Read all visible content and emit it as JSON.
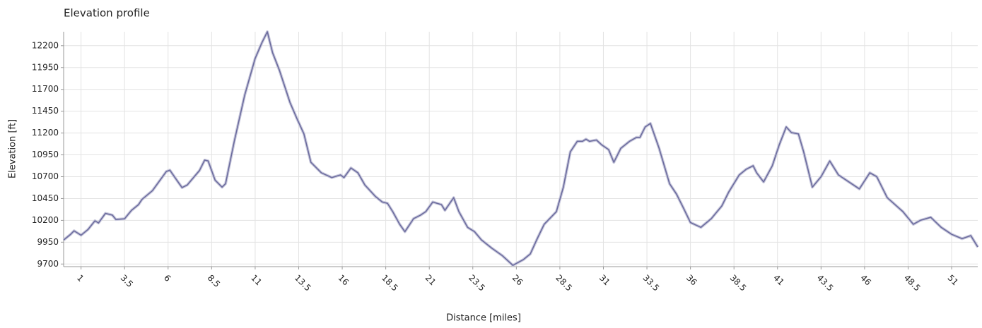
{
  "chart_data": {
    "type": "line",
    "title": "Elevation profile",
    "x_label": "Distance [miles]",
    "y_label": "Elevation [ft]",
    "xlim": [
      0,
      52.5
    ],
    "ylim": [
      9670,
      12360
    ],
    "xticks": [
      1,
      3.5,
      6,
      8.5,
      11,
      13.5,
      16,
      18.5,
      21,
      23.5,
      26,
      28.5,
      31,
      33.5,
      36,
      38.5,
      41,
      43.5,
      46,
      48.5,
      51
    ],
    "yticks": [
      9700,
      9950,
      10200,
      10450,
      10700,
      10950,
      11200,
      11450,
      11700,
      11950,
      12200
    ],
    "grid": true,
    "series": [
      {
        "name": "Elevation",
        "color": "#6c6c9e",
        "x": [
          0,
          0.4,
          0.6,
          1.0,
          1.4,
          1.8,
          2.0,
          2.4,
          2.8,
          3.0,
          3.5,
          3.9,
          4.3,
          4.5,
          5.1,
          5.5,
          5.9,
          6.1,
          6.5,
          6.8,
          7.1,
          7.5,
          7.8,
          8.1,
          8.3,
          8.7,
          9.1,
          9.3,
          9.8,
          10.4,
          11.0,
          11.4,
          11.7,
          12.0,
          12.4,
          13.0,
          13.4,
          13.8,
          14.2,
          14.8,
          15.4,
          15.9,
          16.1,
          16.5,
          16.9,
          17.3,
          17.9,
          18.3,
          18.6,
          18.9,
          19.3,
          19.6,
          20.1,
          20.5,
          20.8,
          21.2,
          21.7,
          21.9,
          22.4,
          22.7,
          23.2,
          23.6,
          24.0,
          24.6,
          25.2,
          25.8,
          26.4,
          26.8,
          27.2,
          27.6,
          28.3,
          28.7,
          29.1,
          29.5,
          29.8,
          30.0,
          30.2,
          30.6,
          30.9,
          31.3,
          31.6,
          32.0,
          32.5,
          32.9,
          33.1,
          33.4,
          33.7,
          34.2,
          34.8,
          35.2,
          35.6,
          36.0,
          36.6,
          37.2,
          37.8,
          38.2,
          38.8,
          39.2,
          39.6,
          39.8,
          40.2,
          40.7,
          41.1,
          41.5,
          41.8,
          42.2,
          42.5,
          43.0,
          43.5,
          44.0,
          44.5,
          45.1,
          45.7,
          46.3,
          46.7,
          47.3,
          48.2,
          48.8,
          49.2,
          49.8,
          50.4,
          51.0,
          51.6,
          52.1,
          52.5
        ],
        "values": [
          9975,
          10040,
          10080,
          10030,
          10095,
          10195,
          10170,
          10280,
          10260,
          10210,
          10218,
          10315,
          10380,
          10440,
          10540,
          10650,
          10760,
          10775,
          10660,
          10575,
          10605,
          10700,
          10770,
          10890,
          10880,
          10660,
          10580,
          10620,
          11105,
          11635,
          12055,
          12240,
          12360,
          12120,
          11915,
          11550,
          11365,
          11190,
          10865,
          10745,
          10690,
          10720,
          10690,
          10800,
          10745,
          10605,
          10475,
          10410,
          10395,
          10300,
          10155,
          10070,
          10220,
          10260,
          10300,
          10410,
          10380,
          10315,
          10460,
          10300,
          10120,
          10070,
          9975,
          9880,
          9795,
          9685,
          9750,
          9815,
          9990,
          10155,
          10300,
          10580,
          10985,
          11105,
          11105,
          11130,
          11105,
          11120,
          11065,
          11010,
          10865,
          11025,
          11105,
          11150,
          11150,
          11270,
          11310,
          11025,
          10620,
          10500,
          10340,
          10175,
          10120,
          10220,
          10365,
          10525,
          10720,
          10785,
          10825,
          10745,
          10640,
          10825,
          11065,
          11270,
          11205,
          11190,
          10985,
          10580,
          10700,
          10880,
          10720,
          10640,
          10560,
          10745,
          10700,
          10460,
          10300,
          10155,
          10200,
          10235,
          10120,
          10040,
          9990,
          10025,
          9895
        ]
      }
    ]
  }
}
